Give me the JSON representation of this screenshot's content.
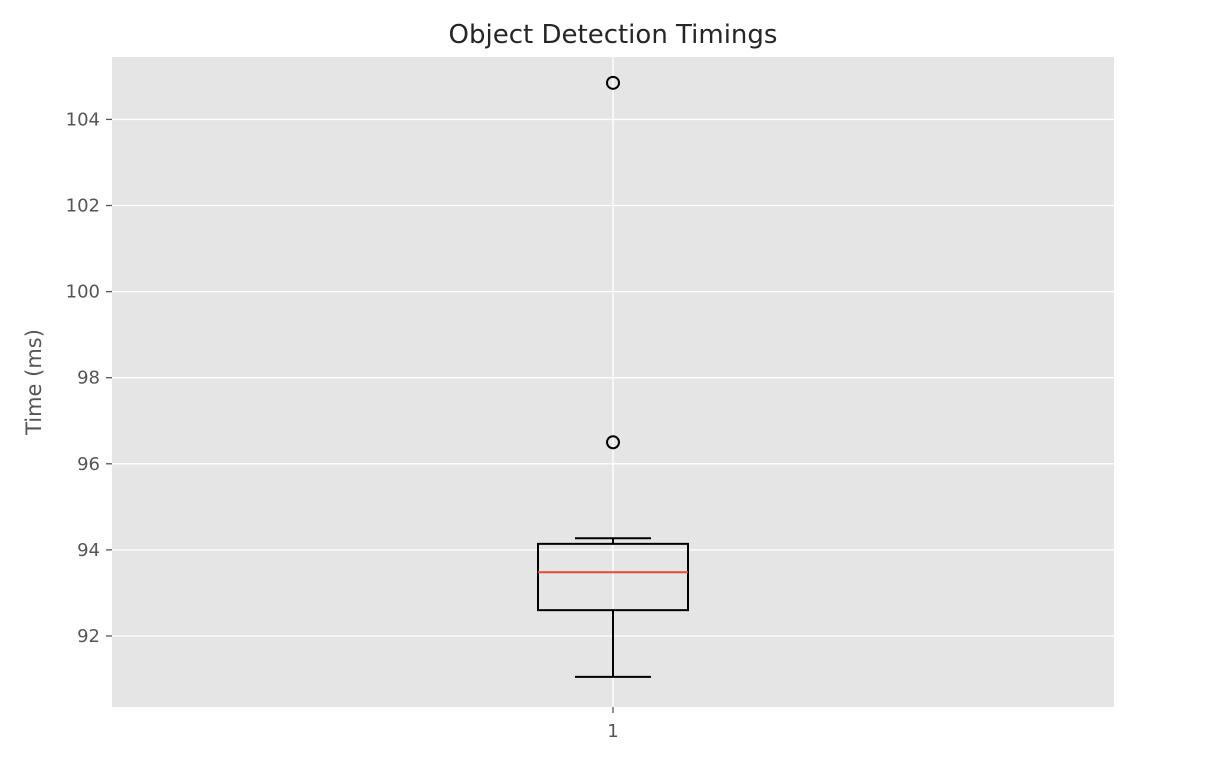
{
  "chart_data": {
    "type": "box",
    "title": "Object Detection Timings",
    "xlabel": "",
    "ylabel": "Time (ms)",
    "categories": [
      "1"
    ],
    "boxes": [
      {
        "category": "1",
        "whisker_low": 91.05,
        "q1": 92.6,
        "median": 93.48,
        "q3": 94.14,
        "whisker_high": 94.27,
        "outliers": [
          96.5,
          104.85
        ]
      }
    ],
    "yticks": [
      92,
      94,
      96,
      98,
      100,
      102,
      104
    ],
    "ylim": [
      90.35,
      105.45
    ],
    "grid": true,
    "colors": {
      "plot_background": "#e5e5e5",
      "grid": "#ffffff",
      "box": "#000000",
      "median": "#e24a33",
      "tick_text": "#555555"
    }
  }
}
